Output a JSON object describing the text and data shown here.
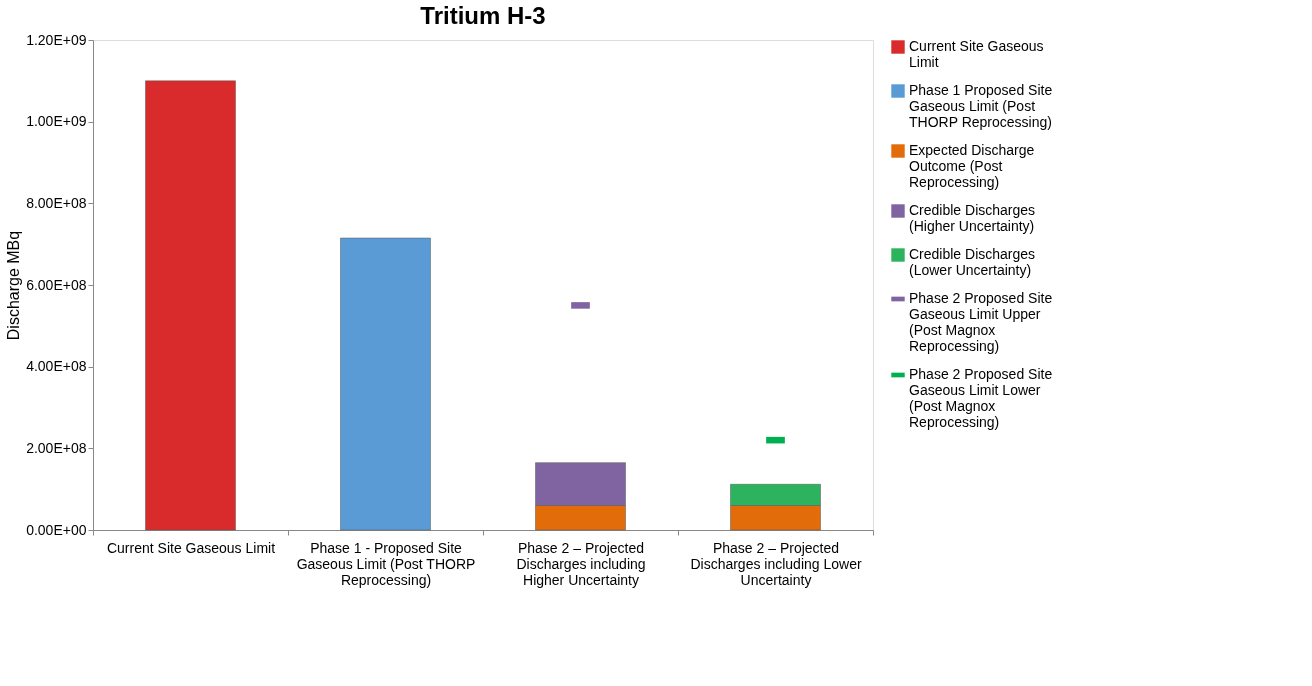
{
  "chart_data": {
    "type": "bar",
    "stacked": true,
    "title": "Tritium H-3",
    "ylabel": "Discharge MBq",
    "categories": [
      "Current Site Gaseous Limit",
      "Phase 1 - Proposed  Site Gaseous Limit (Post THORP Reprocessing)",
      "Phase 2 – Projected Discharges including Higher Uncertainty",
      "Phase 2 – Projected Discharges including Lower Uncertainty"
    ],
    "series": [
      {
        "name": "Current Site Gaseous Limit",
        "color": "#d92b2b",
        "values": [
          1100000000,
          null,
          null,
          null
        ]
      },
      {
        "name": "Phase 1 Proposed Site Gaseous Limit (Post THORP Reprocessing)",
        "color": "#5b9bd5",
        "values": [
          null,
          715000000,
          null,
          null
        ]
      },
      {
        "name": "Expected Discharge Outcome (Post Reprocessing)",
        "color": "#e36c0a",
        "values": [
          null,
          null,
          60000000,
          60000000
        ]
      },
      {
        "name": "Credible Discharges (Higher Uncertainty)",
        "color": "#8064a2",
        "values": [
          null,
          null,
          105000000,
          null
        ]
      },
      {
        "name": "Credible Discharges (Lower Uncertainty)",
        "color": "#2db35d",
        "values": [
          null,
          null,
          null,
          52000000
        ]
      },
      {
        "name": "Phase 2 Proposed Site Gaseous Limit Upper (Post Magnox Reprocessing)",
        "type": "scatter",
        "color": "#8064a2",
        "values": [
          null,
          null,
          550000000,
          null
        ]
      },
      {
        "name": "Phase 2 Proposed Site Gaseous Limit Lower (Post Magnox Reprocessing)",
        "type": "scatter",
        "color": "#00b050",
        "values": [
          null,
          null,
          null,
          220000000
        ]
      }
    ],
    "ylim": [
      0,
      1200000000
    ],
    "yticks": [
      {
        "value": 0,
        "label": "0.00E+00"
      },
      {
        "value": 200000000,
        "label": "2.00E+08"
      },
      {
        "value": 400000000,
        "label": "4.00E+08"
      },
      {
        "value": 600000000,
        "label": "6.00E+08"
      },
      {
        "value": 800000000,
        "label": "8.00E+08"
      },
      {
        "value": 1000000000,
        "label": "1.00E+09"
      },
      {
        "value": 1200000000,
        "label": "1.20E+09"
      }
    ],
    "grid": false,
    "legend": "right"
  }
}
